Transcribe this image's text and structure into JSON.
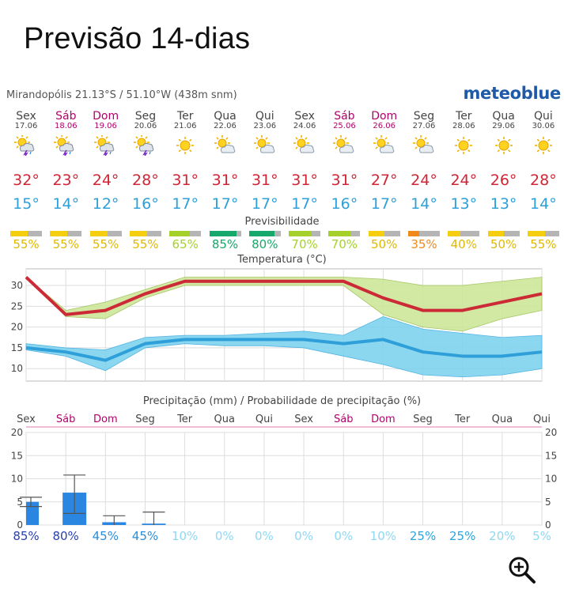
{
  "page_title": "Previsão 14-dias",
  "location_line": "Mirandopólis  21.13°S / 51.10°W (438m snm)",
  "brand": "meteoblue",
  "days": [
    {
      "name": "Sex",
      "date": "17.06",
      "weekend": false,
      "icon": "thunderstorm-icon",
      "max": "32°",
      "min": "15°",
      "pred": "55%",
      "pred_pct": 55,
      "pred_color": "#f5cf0f"
    },
    {
      "name": "Sáb",
      "date": "18.06",
      "weekend": true,
      "icon": "thunderstorm-icon",
      "max": "23°",
      "min": "14°",
      "pred": "55%",
      "pred_pct": 55,
      "pred_color": "#f5cf0f"
    },
    {
      "name": "Dom",
      "date": "19.06",
      "weekend": true,
      "icon": "thunderstorm-icon",
      "max": "24°",
      "min": "12°",
      "pred": "55%",
      "pred_pct": 55,
      "pred_color": "#f5cf0f"
    },
    {
      "name": "Seg",
      "date": "20.06",
      "weekend": false,
      "icon": "thunderstorm-icon",
      "max": "28°",
      "min": "16°",
      "pred": "55%",
      "pred_pct": 55,
      "pred_color": "#f5cf0f"
    },
    {
      "name": "Ter",
      "date": "21.06",
      "weekend": false,
      "icon": "sun-icon",
      "max": "31°",
      "min": "17°",
      "pred": "65%",
      "pred_pct": 65,
      "pred_color": "#a6d12b"
    },
    {
      "name": "Qua",
      "date": "22.06",
      "weekend": false,
      "icon": "sun-cloud-icon",
      "max": "31°",
      "min": "17°",
      "pred": "85%",
      "pred_pct": 85,
      "pred_color": "#17a86b"
    },
    {
      "name": "Qui",
      "date": "23.06",
      "weekend": false,
      "icon": "sun-cloud-icon",
      "max": "31°",
      "min": "17°",
      "pred": "80%",
      "pred_pct": 80,
      "pred_color": "#17a86b"
    },
    {
      "name": "Sex",
      "date": "24.06",
      "weekend": false,
      "icon": "sun-cloud-icon",
      "max": "31°",
      "min": "17°",
      "pred": "70%",
      "pred_pct": 70,
      "pred_color": "#a6d12b"
    },
    {
      "name": "Sáb",
      "date": "25.06",
      "weekend": true,
      "icon": "sun-cloud-icon",
      "max": "31°",
      "min": "16°",
      "pred": "70%",
      "pred_pct": 70,
      "pred_color": "#a6d12b"
    },
    {
      "name": "Dom",
      "date": "26.06",
      "weekend": true,
      "icon": "sun-cloud-icon",
      "max": "27°",
      "min": "17°",
      "pred": "50%",
      "pred_pct": 50,
      "pred_color": "#f5cf0f"
    },
    {
      "name": "Seg",
      "date": "27.06",
      "weekend": false,
      "icon": "sun-cloud-icon",
      "max": "24°",
      "min": "14°",
      "pred": "35%",
      "pred_pct": 35,
      "pred_color": "#f08a1c"
    },
    {
      "name": "Ter",
      "date": "28.06",
      "weekend": false,
      "icon": "sun-icon",
      "max": "24°",
      "min": "13°",
      "pred": "40%",
      "pred_pct": 40,
      "pred_color": "#f5cf0f"
    },
    {
      "name": "Qua",
      "date": "29.06",
      "weekend": false,
      "icon": "sun-icon",
      "max": "26°",
      "min": "13°",
      "pred": "50%",
      "pred_pct": 50,
      "pred_color": "#f5cf0f"
    },
    {
      "name": "Qui",
      "date": "30.06",
      "weekend": false,
      "icon": "sun-icon",
      "max": "28°",
      "min": "14°",
      "pred": "55%",
      "pred_pct": 55,
      "pred_color": "#f5cf0f"
    }
  ],
  "predictability_title": "Previsibilidade",
  "temp_chart_title": "Temperatura (°C)",
  "precip_chart_title": "Precipitação (mm) / Probabilidade de precipitação (%)",
  "precip_days": [
    "Sex",
    "Sáb",
    "Dom",
    "Seg",
    "Ter",
    "Qua",
    "Qui",
    "Sex",
    "Sáb",
    "Dom",
    "Seg",
    "Ter",
    "Qua",
    "Qui"
  ],
  "precip_weekend": [
    false,
    true,
    true,
    false,
    false,
    false,
    false,
    false,
    true,
    true,
    false,
    false,
    false,
    false
  ],
  "precip_probs": [
    "85%",
    "80%",
    "45%",
    "45%",
    "10%",
    "0%",
    "0%",
    "0%",
    "0%",
    "10%",
    "25%",
    "25%",
    "20%",
    "5%"
  ],
  "precip_prob_colors": [
    "#2a3fae",
    "#2a3fae",
    "#2a8ed8",
    "#2a8ed8",
    "#8fd8f2",
    "#8fd8f2",
    "#8fd8f2",
    "#8fd8f2",
    "#8fd8f2",
    "#8fd8f2",
    "#2aa6e0",
    "#2aa6e0",
    "#8fd8f2",
    "#8fd8f2"
  ],
  "chart_data": [
    {
      "type": "line",
      "title": "Temperatura (°C)",
      "x": [
        "17.06",
        "18.06",
        "19.06",
        "20.06",
        "21.06",
        "22.06",
        "23.06",
        "24.06",
        "25.06",
        "26.06",
        "27.06",
        "28.06",
        "29.06",
        "30.06"
      ],
      "ylim": [
        7,
        34
      ],
      "y_ticks": [
        10,
        15,
        20,
        25,
        30
      ],
      "series": [
        {
          "values": [
            32,
            23,
            24,
            28,
            31,
            31,
            31,
            31,
            31,
            27,
            24,
            24,
            26,
            28
          ],
          "color": "#cc2a36",
          "band_high": [
            32,
            24,
            26,
            29,
            32,
            32,
            32,
            32,
            32,
            31.5,
            30,
            30,
            31,
            32
          ],
          "band_low": [
            32,
            22.5,
            22,
            27,
            30,
            30,
            30,
            30,
            30,
            23,
            20,
            19,
            22,
            24
          ],
          "band_color": "#cde79a"
        },
        {
          "values": [
            15,
            14,
            12,
            16,
            17,
            17,
            17,
            17,
            16,
            17,
            14,
            13,
            13,
            14
          ],
          "color": "#2e9fd8",
          "band_high": [
            16,
            15,
            14.5,
            17.5,
            18,
            18,
            18.5,
            19,
            18,
            22.5,
            19.5,
            18.5,
            17.5,
            18
          ],
          "band_low": [
            14.5,
            13,
            9.5,
            15,
            16,
            15.5,
            15.5,
            15,
            13,
            11,
            8.5,
            8,
            8.5,
            10
          ],
          "band_color": "#7fd3ef"
        }
      ],
      "grid": true
    },
    {
      "type": "bar",
      "title": "Precipitação (mm) / Probabilidade de precipitação (%)",
      "categories": [
        "Sex",
        "Sáb",
        "Dom",
        "Seg",
        "Ter",
        "Qua",
        "Qui",
        "Sex",
        "Sáb",
        "Dom",
        "Seg",
        "Ter",
        "Qua",
        "Qui"
      ],
      "ylim": [
        0,
        20
      ],
      "y_ticks": [
        0,
        5,
        10,
        15,
        20
      ],
      "values": [
        5,
        7,
        0.6,
        0.3,
        0,
        0,
        0,
        0,
        0,
        0,
        0,
        0,
        0,
        0
      ],
      "error_high": [
        6,
        10.8,
        2,
        2.8,
        0,
        0,
        0,
        0,
        0,
        0,
        0,
        0,
        0,
        0
      ],
      "error_low": [
        4,
        2.5,
        0,
        0,
        0,
        0,
        0,
        0,
        0,
        0,
        0,
        0,
        0,
        0
      ],
      "probability": [
        "85%",
        "80%",
        "45%",
        "45%",
        "10%",
        "0%",
        "0%",
        "0%",
        "0%",
        "10%",
        "25%",
        "25%",
        "20%",
        "5%"
      ],
      "bar_color": "#2a86e0",
      "grid": true
    }
  ]
}
